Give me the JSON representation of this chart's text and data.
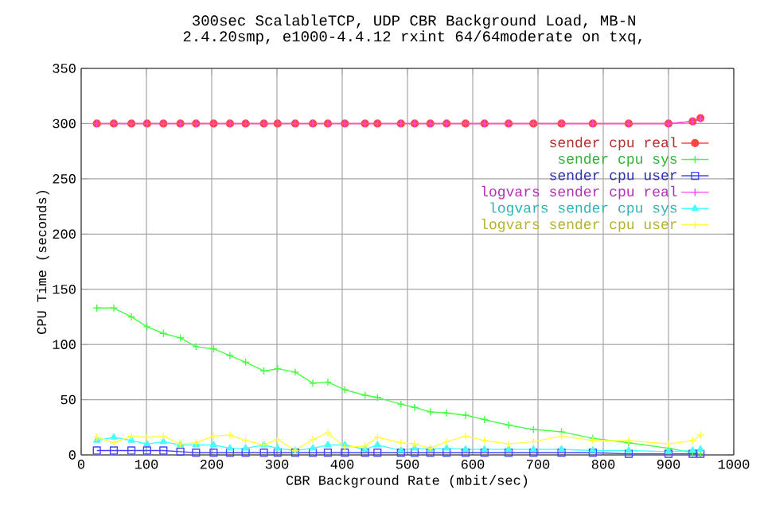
{
  "chart_data": {
    "type": "line",
    "title": "300sec ScalableTCP, UDP CBR Background Load, MB-N",
    "subtitle": "2.4.20smp, e1000-4.4.12 rxint 64/64moderate on txq,",
    "xlabel": "CBR Background Rate (mbit/sec)",
    "ylabel": "CPU Time (seconds)",
    "x": [
      24,
      50,
      77,
      101,
      126,
      152,
      176,
      203,
      228,
      252,
      280,
      301,
      328,
      355,
      378,
      404,
      435,
      454,
      490,
      511,
      535,
      560,
      589,
      618,
      655,
      693,
      736,
      784,
      839,
      900,
      937,
      949
    ],
    "xlim": [
      0,
      1000
    ],
    "ylim": [
      0,
      350
    ],
    "xticks": [
      0,
      100,
      200,
      300,
      400,
      500,
      600,
      700,
      800,
      900,
      1000
    ],
    "yticks": [
      0,
      50,
      100,
      150,
      200,
      250,
      300,
      350
    ],
    "grid": true,
    "legend": "top right",
    "series": [
      {
        "name": "sender cpu real",
        "color": "#ff4444",
        "marker": "circle",
        "values": [
          300,
          300,
          300,
          300,
          300,
          300,
          300,
          300,
          300,
          300,
          300,
          300,
          300,
          300,
          300,
          300,
          300,
          300,
          300,
          300,
          300,
          300,
          300,
          300,
          300,
          300,
          300,
          300,
          300,
          300,
          302,
          305
        ]
      },
      {
        "name": "sender cpu sys",
        "color": "#44ff44",
        "marker": "cross",
        "values": [
          133,
          133,
          125,
          116,
          110,
          106,
          98,
          96,
          90,
          84,
          76,
          78,
          75,
          65,
          66,
          59,
          54,
          52,
          46,
          43,
          39,
          38,
          36,
          32,
          27,
          23,
          21,
          15,
          11,
          6,
          2,
          1
        ]
      },
      {
        "name": "sender cpu user",
        "color": "#4444ff",
        "marker": "square",
        "values": [
          4,
          4,
          4,
          4,
          4,
          3,
          2,
          2,
          2,
          2,
          2,
          2,
          2,
          2,
          2,
          2,
          2,
          2,
          2,
          2,
          2,
          2,
          2,
          2,
          2,
          2,
          2,
          2,
          1,
          1,
          1,
          1
        ]
      },
      {
        "name": "logvars sender cpu real",
        "color": "#ff44ff",
        "marker": "cross",
        "values": [
          300,
          300,
          300,
          300,
          300,
          300,
          300,
          300,
          300,
          300,
          300,
          300,
          300,
          300,
          300,
          300,
          300,
          300,
          300,
          300,
          300,
          300,
          300,
          300,
          300,
          300,
          300,
          300,
          300,
          300,
          302,
          304
        ]
      },
      {
        "name": "logvars sender cpu sys",
        "color": "#44ffff",
        "marker": "triangle",
        "values": [
          13,
          16,
          13,
          10,
          12,
          9,
          9,
          9,
          6,
          6,
          9,
          6,
          4,
          6,
          9,
          9,
          5,
          9,
          4,
          6,
          5,
          6,
          5,
          5,
          5,
          5,
          5,
          4,
          4,
          3,
          4,
          5
        ]
      },
      {
        "name": "logvars sender cpu user",
        "color": "#ffff44",
        "marker": "cross",
        "values": [
          16,
          11,
          17,
          16,
          17,
          10,
          11,
          17,
          18,
          13,
          9,
          14,
          4,
          14,
          20,
          7,
          8,
          16,
          11,
          10,
          6,
          12,
          17,
          13,
          10,
          12,
          17,
          13,
          13,
          10,
          13,
          18
        ]
      }
    ]
  }
}
